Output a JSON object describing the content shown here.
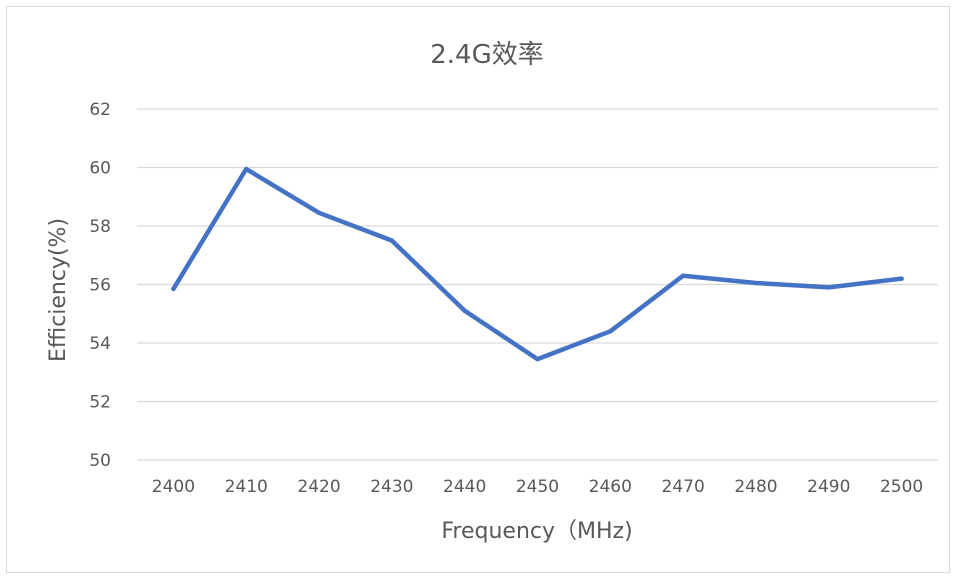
{
  "chart_data": {
    "type": "line",
    "title": "2.4G效率",
    "xlabel": "Frequency（MHz)",
    "ylabel": "Efficiency(%)",
    "categories": [
      "2400",
      "2410",
      "2420",
      "2430",
      "2440",
      "2450",
      "2460",
      "2470",
      "2480",
      "2490",
      "2500"
    ],
    "series": [
      {
        "values": [
          55.85,
          59.95,
          58.45,
          57.5,
          55.1,
          53.45,
          54.4,
          56.3,
          56.05,
          55.9,
          56.2
        ],
        "color": "#4472c4"
      }
    ],
    "y_ticks": [
      "50",
      "52",
      "54",
      "56",
      "58",
      "60",
      "62"
    ],
    "ylim": [
      50,
      62
    ],
    "grid": true,
    "legend": "none"
  }
}
